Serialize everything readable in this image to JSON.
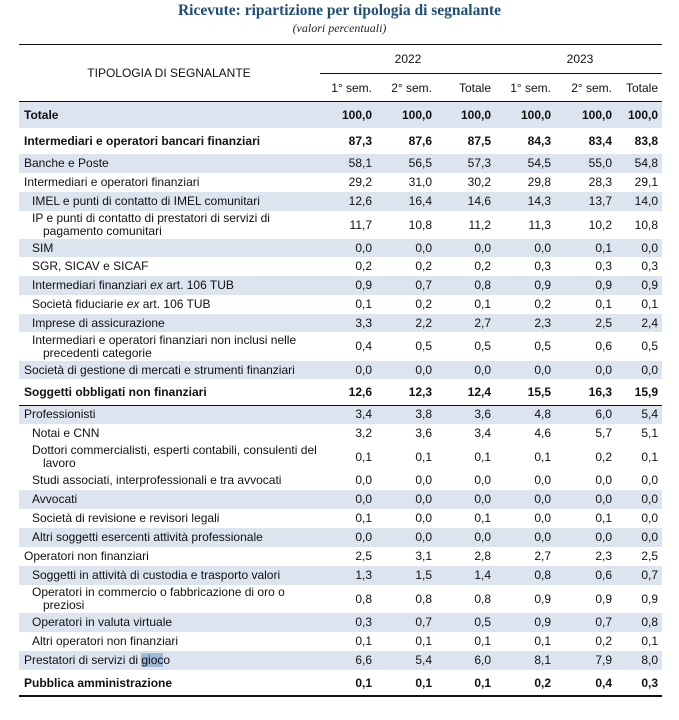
{
  "title": "Ricevute: ripartizione per tipologia di segnalante",
  "subtitle": "(valori percentuali)",
  "header": {
    "row_label": "TIPOLOGIA DI SEGNALANTE",
    "years": [
      "2022",
      "2023"
    ],
    "columns": [
      "1° sem.",
      "2° sem.",
      "Totale",
      "1° sem.",
      "2° sem.",
      "Totale"
    ]
  },
  "colors": {
    "title": "#1f4e79",
    "row_shading": "#dce4ef",
    "selection": "#9fb9db"
  },
  "rows": [
    {
      "parts": [
        {
          "t": "Totale"
        }
      ],
      "values": [
        "100,0",
        "100,0",
        "100,0",
        "100,0",
        "100,0",
        "100,0"
      ],
      "level": 0,
      "bold": true,
      "shaded": true,
      "h": 26
    },
    {
      "parts": [
        {
          "t": "Intermediari e operatori bancari finanziari"
        }
      ],
      "values": [
        "87,3",
        "87,6",
        "87,5",
        "84,3",
        "83,4",
        "83,8"
      ],
      "level": 0,
      "bold": true,
      "shaded": false,
      "h": 26
    },
    {
      "parts": [
        {
          "t": "Banche e Poste"
        }
      ],
      "values": [
        "58,1",
        "56,5",
        "57,3",
        "54,5",
        "55,0",
        "54,8"
      ],
      "level": 0,
      "shaded": true,
      "h": 19
    },
    {
      "parts": [
        {
          "t": "Intermediari e operatori finanziari"
        }
      ],
      "values": [
        "29,2",
        "31,0",
        "30,2",
        "29,8",
        "28,3",
        "29,1"
      ],
      "level": 0,
      "shaded": false,
      "h": 19
    },
    {
      "parts": [
        {
          "t": "IMEL e punti di contatto di IMEL comunitari"
        }
      ],
      "values": [
        "12,6",
        "16,4",
        "14,6",
        "14,3",
        "13,7",
        "14,0"
      ],
      "level": 1,
      "shaded": true,
      "h": 19
    },
    {
      "parts": [
        {
          "t": "IP e punti di contatto di prestatori di servizi di pagamento comunitari"
        }
      ],
      "values": [
        "11,7",
        "10,8",
        "11,2",
        "11,3",
        "10,2",
        "10,8"
      ],
      "level": 1,
      "shaded": false,
      "h": 28
    },
    {
      "parts": [
        {
          "t": "SIM"
        }
      ],
      "values": [
        "0,0",
        "0,0",
        "0,0",
        "0,0",
        "0,1",
        "0,0"
      ],
      "level": 1,
      "shaded": true,
      "h": 18
    },
    {
      "parts": [
        {
          "t": "SGR, SICAV e SICAF"
        }
      ],
      "values": [
        "0,2",
        "0,2",
        "0,2",
        "0,3",
        "0,3",
        "0,3"
      ],
      "level": 1,
      "shaded": false,
      "h": 19
    },
    {
      "parts": [
        {
          "t": "Intermediari finanziari "
        },
        {
          "t": "ex",
          "em": true
        },
        {
          "t": " art. 106 TUB"
        }
      ],
      "values": [
        "0,9",
        "0,7",
        "0,8",
        "0,9",
        "0,9",
        "0,9"
      ],
      "level": 1,
      "shaded": true,
      "h": 19
    },
    {
      "parts": [
        {
          "t": "Società fiduciarie "
        },
        {
          "t": "ex",
          "em": true
        },
        {
          "t": " art. 106 TUB"
        }
      ],
      "values": [
        "0,1",
        "0,2",
        "0,1",
        "0,2",
        "0,1",
        "0,1"
      ],
      "level": 1,
      "shaded": false,
      "h": 19
    },
    {
      "parts": [
        {
          "t": "Imprese di assicurazione"
        }
      ],
      "values": [
        "3,3",
        "2,2",
        "2,7",
        "2,3",
        "2,5",
        "2,4"
      ],
      "level": 1,
      "shaded": true,
      "h": 18
    },
    {
      "parts": [
        {
          "t": "Intermediari e operatori finanziari non inclusi nelle precedenti categorie"
        }
      ],
      "values": [
        "0,4",
        "0,5",
        "0,5",
        "0,5",
        "0,6",
        "0,5"
      ],
      "level": 1,
      "shaded": false,
      "h": 29
    },
    {
      "parts": [
        {
          "t": "Società di gestione di mercati e strumenti finanziari"
        }
      ],
      "values": [
        "0,0",
        "0,0",
        "0,0",
        "0,0",
        "0,0",
        "0,0"
      ],
      "level": 0,
      "shaded": true,
      "h": 18
    },
    {
      "parts": [
        {
          "t": "Soggetti obbligati non finanziari"
        }
      ],
      "values": [
        "12,6",
        "12,3",
        "12,4",
        "15,5",
        "16,3",
        "15,9"
      ],
      "level": 0,
      "bold": true,
      "shaded": false,
      "h": 26,
      "rule_after": true
    },
    {
      "parts": [
        {
          "t": "Professionisti"
        }
      ],
      "values": [
        "3,4",
        "3,8",
        "3,6",
        "4,8",
        "6,0",
        "5,4"
      ],
      "level": 0,
      "shaded": true,
      "h": 19
    },
    {
      "parts": [
        {
          "t": "Notai e CNN"
        }
      ],
      "values": [
        "3,2",
        "3,6",
        "3,4",
        "4,6",
        "5,7",
        "5,1"
      ],
      "level": 1,
      "shaded": false,
      "h": 19
    },
    {
      "parts": [
        {
          "t": "Dottori commercialisti, esperti contabili, consulenti del lavoro"
        }
      ],
      "values": [
        "0,1",
        "0,1",
        "0,1",
        "0,1",
        "0,2",
        "0,1"
      ],
      "level": 1,
      "shaded": false,
      "h": 28
    },
    {
      "parts": [
        {
          "t": "Studi associati, interprofessionali e tra avvocati"
        }
      ],
      "values": [
        "0,0",
        "0,0",
        "0,0",
        "0,0",
        "0,0",
        "0,0"
      ],
      "level": 1,
      "shaded": false,
      "h": 19
    },
    {
      "parts": [
        {
          "t": "Avvocati"
        }
      ],
      "values": [
        "0,0",
        "0,0",
        "0,0",
        "0,0",
        "0,0",
        "0,0"
      ],
      "level": 1,
      "shaded": true,
      "h": 19
    },
    {
      "parts": [
        {
          "t": "Società di revisione e revisori legali"
        }
      ],
      "values": [
        "0,1",
        "0,0",
        "0,1",
        "0,0",
        "0,1",
        "0,0"
      ],
      "level": 1,
      "shaded": false,
      "h": 19
    },
    {
      "parts": [
        {
          "t": "Altri soggetti esercenti attività professionale"
        }
      ],
      "values": [
        "0,0",
        "0,0",
        "0,0",
        "0,0",
        "0,0",
        "0,0"
      ],
      "level": 1,
      "shaded": true,
      "h": 19
    },
    {
      "parts": [
        {
          "t": "Operatori non finanziari"
        }
      ],
      "values": [
        "2,5",
        "3,1",
        "2,8",
        "2,7",
        "2,3",
        "2,5"
      ],
      "level": 0,
      "shaded": false,
      "h": 19
    },
    {
      "parts": [
        {
          "t": "Soggetti in attività di custodia e trasporto valori"
        }
      ],
      "values": [
        "1,3",
        "1,5",
        "1,4",
        "0,8",
        "0,6",
        "0,7"
      ],
      "level": 1,
      "shaded": true,
      "h": 19
    },
    {
      "parts": [
        {
          "t": "Operatori in commercio o fabbricazione di oro o preziosi"
        }
      ],
      "values": [
        "0,8",
        "0,8",
        "0,8",
        "0,9",
        "0,9",
        "0,9"
      ],
      "level": 1,
      "shaded": false,
      "h": 28
    },
    {
      "parts": [
        {
          "t": "Operatori in valuta virtuale"
        }
      ],
      "values": [
        "0,3",
        "0,7",
        "0,5",
        "0,9",
        "0,7",
        "0,8"
      ],
      "level": 1,
      "shaded": true,
      "h": 19
    },
    {
      "parts": [
        {
          "t": "Altri operatori non finanziari"
        }
      ],
      "values": [
        "0,1",
        "0,1",
        "0,1",
        "0,1",
        "0,2",
        "0,1"
      ],
      "level": 1,
      "shaded": false,
      "h": 19
    },
    {
      "parts": [
        {
          "t": "Prestatori di servizi di "
        },
        {
          "t": "gioc",
          "hl": true
        },
        {
          "t": "o"
        }
      ],
      "values": [
        "6,6",
        "5,4",
        "6,0",
        "8,1",
        "7,9",
        "8,0"
      ],
      "level": 0,
      "shaded": true,
      "h": 19
    },
    {
      "parts": [
        {
          "t": "Pubblica amministrazione"
        }
      ],
      "values": [
        "0,1",
        "0,1",
        "0,1",
        "0,2",
        "0,4",
        "0,3"
      ],
      "level": 0,
      "bold": true,
      "shaded": false,
      "h": 26
    }
  ]
}
